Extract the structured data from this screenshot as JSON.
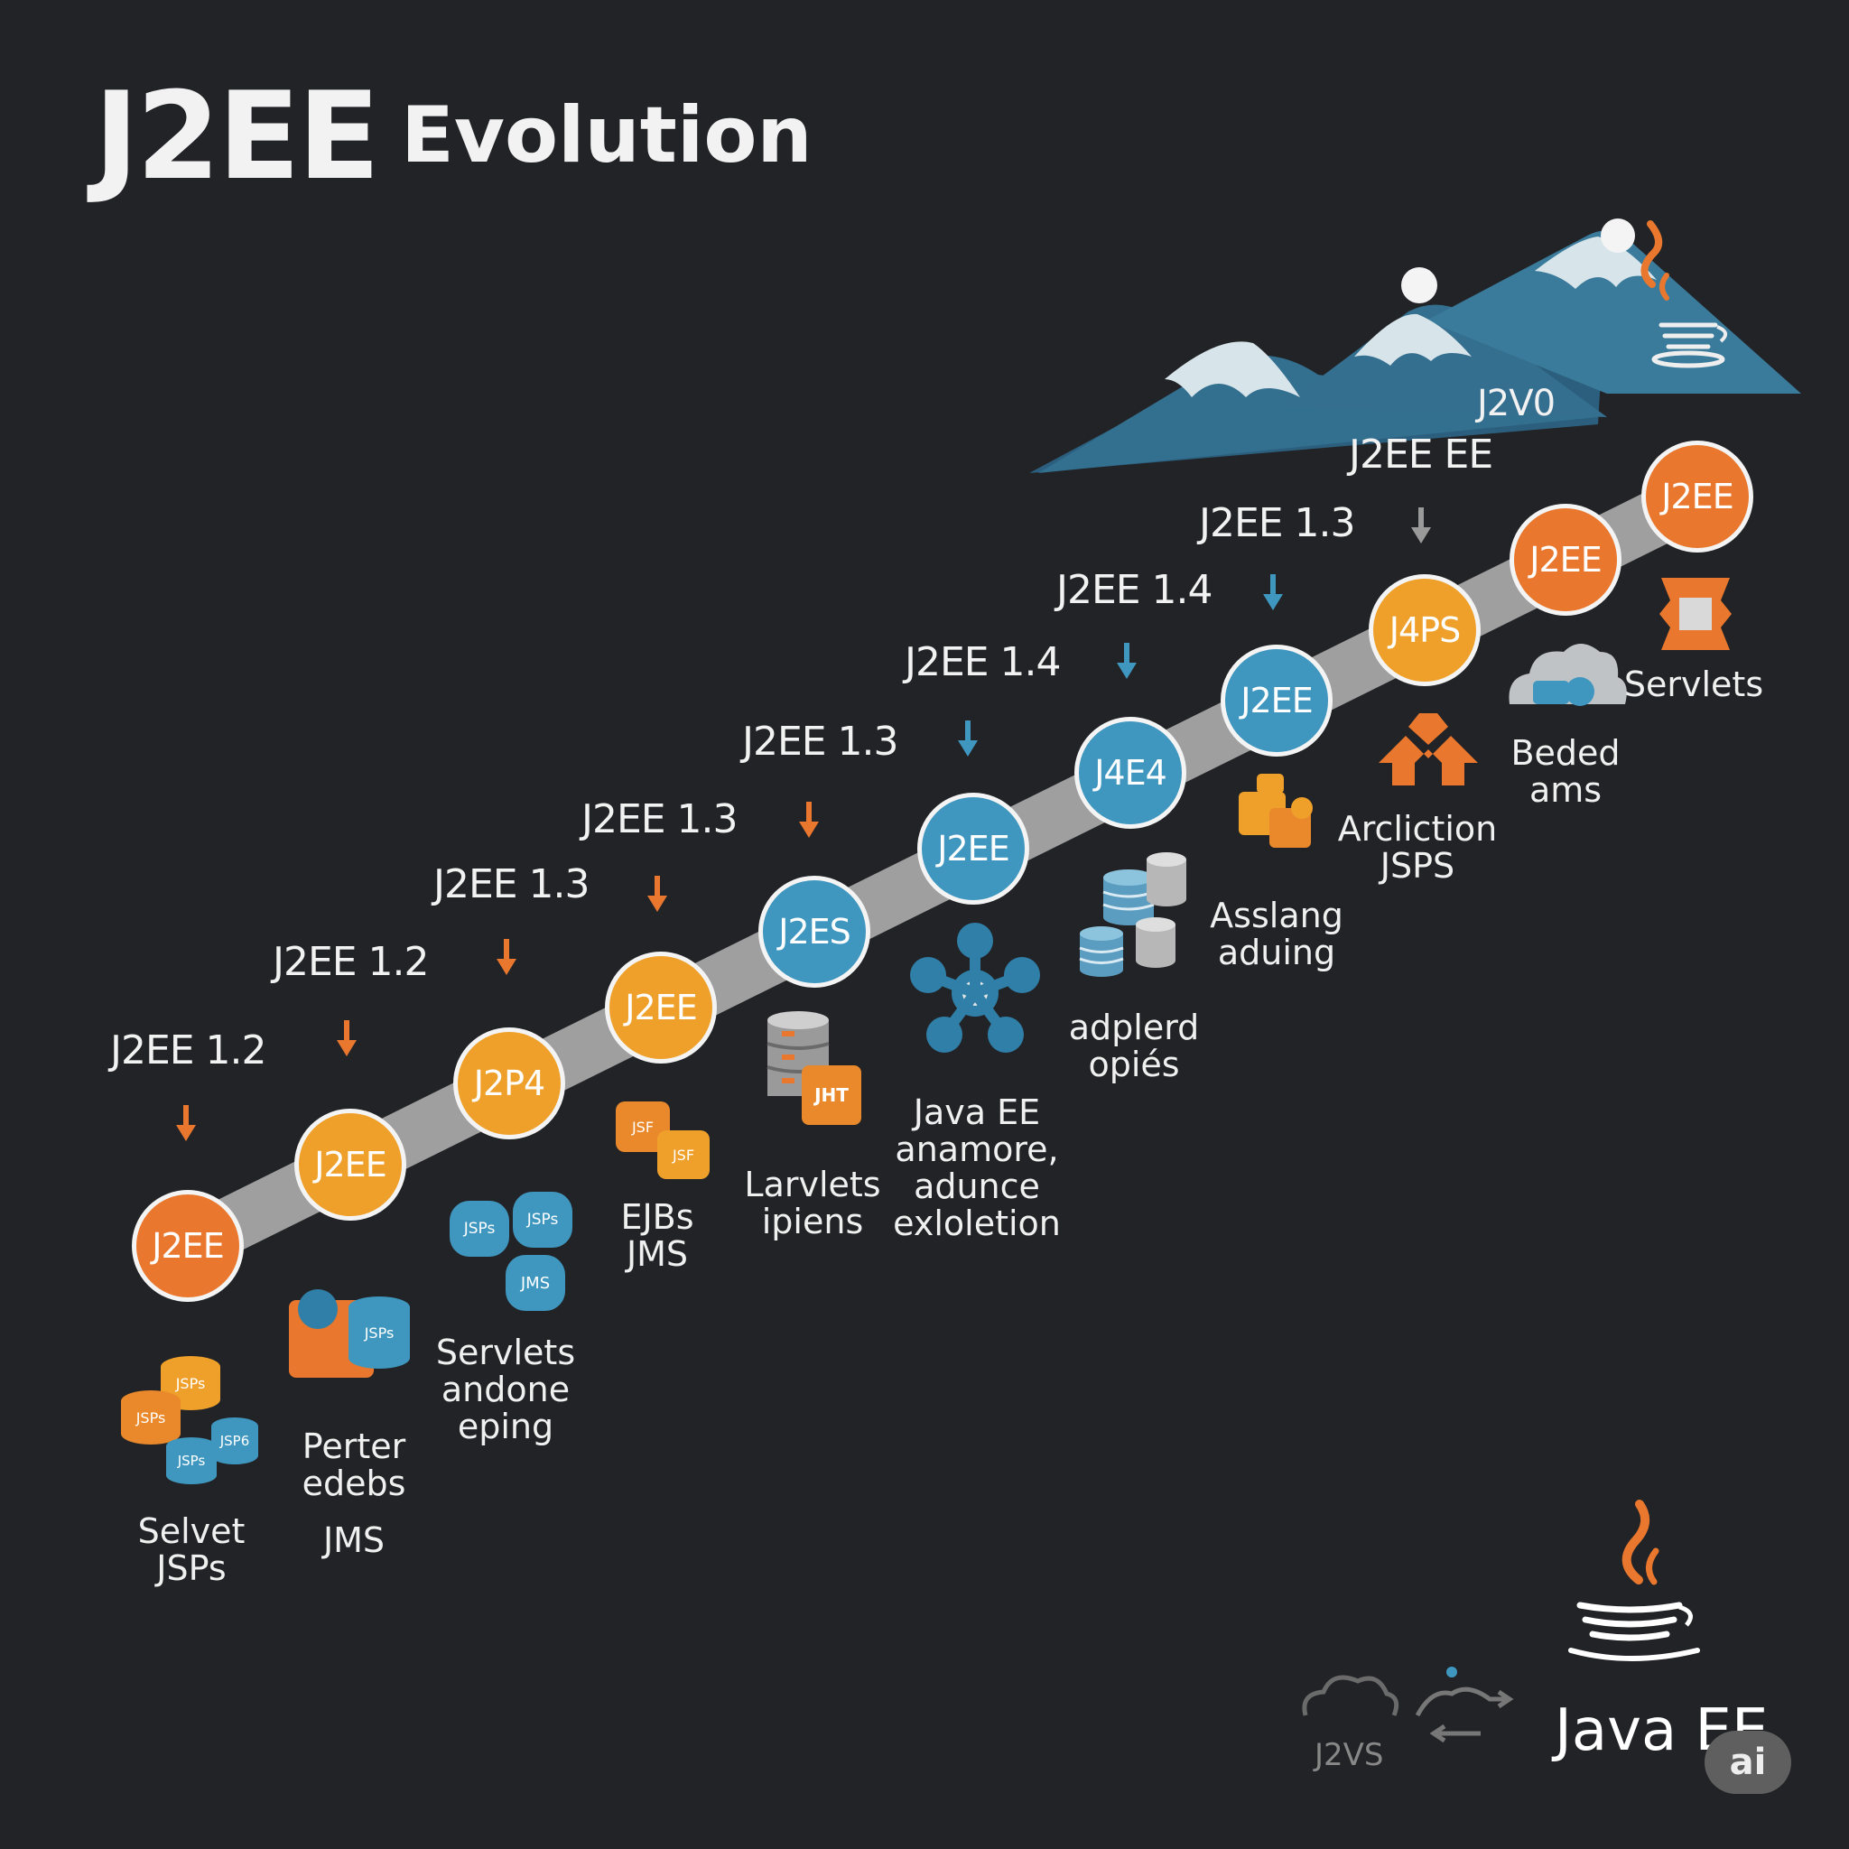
{
  "title": {
    "main": "J2EE",
    "rest": "Evolution"
  },
  "nodes": [
    {
      "label": "J2EE",
      "color": "#e9772d"
    },
    {
      "label": "J2EE",
      "color": "#efa02a"
    },
    {
      "label": "J2P4",
      "color": "#efa02a"
    },
    {
      "label": "J2EE",
      "color": "#efa02a"
    },
    {
      "label": "J2ES",
      "color": "#3f97c0"
    },
    {
      "label": "J2EE",
      "color": "#3f97c0"
    },
    {
      "label": "J4E4",
      "color": "#3f97c0"
    },
    {
      "label": "J2EE",
      "color": "#3f97c0"
    },
    {
      "label": "J4PS",
      "color": "#efa02a"
    },
    {
      "label": "J2EE",
      "color": "#e9772d"
    },
    {
      "label": "J2EE",
      "color": "#e9772d"
    }
  ],
  "versions": [
    "J2EE 1.2",
    "J2EE 1.2",
    "J2EE 1.3",
    "J2EE 1.3",
    "J2EE 1.3",
    "J2EE 1.4",
    "J2EE 1.4",
    "J2EE 1.3",
    "J2EE EE",
    "J2V0"
  ],
  "captions": [
    {
      "l1": "Selvet",
      "l2": "JSPs"
    },
    {
      "l1": "Perter",
      "l2": "edebs",
      "l3": "JMS"
    },
    {
      "l1": "Servlets",
      "l2": "andone",
      "l3": "eping"
    },
    {
      "l1": "EJBs",
      "l2": "JMS"
    },
    {
      "l1": "Larvlets",
      "l2": "ipiens"
    },
    {
      "l1": "Java EE",
      "l2": "anamore,",
      "l3": "adunce",
      "l4": "exloletion"
    },
    {
      "l1": "adplerd",
      "l2": "opiés"
    },
    {
      "l1": "Asslang",
      "l2": "aduing"
    },
    {
      "l1": "Arcliction",
      "l2": "JSPS"
    },
    {
      "l1": "Beded",
      "l2": "ams"
    },
    {
      "l1": "Servlets"
    }
  ],
  "icon_labels": {
    "jsps": "JSPs",
    "jsp6": "JSP6",
    "jms": "JMS",
    "jsf": "JSF",
    "jht": "JHT"
  },
  "footer": {
    "brand": "Java EE",
    "badge": "ai",
    "small": "J2VS"
  },
  "colors": {
    "background": "#222326",
    "orange": "#e9772d",
    "amber": "#efa02a",
    "blue": "#3f97c0",
    "track": "#a6a6a6",
    "mountain": "#2e6d8c"
  },
  "icons": [
    "database-cylinder-icon",
    "puzzle-piece-icon",
    "network-hub-icon",
    "cloud-icon",
    "java-cup-icon",
    "building-blocks-icon"
  ]
}
